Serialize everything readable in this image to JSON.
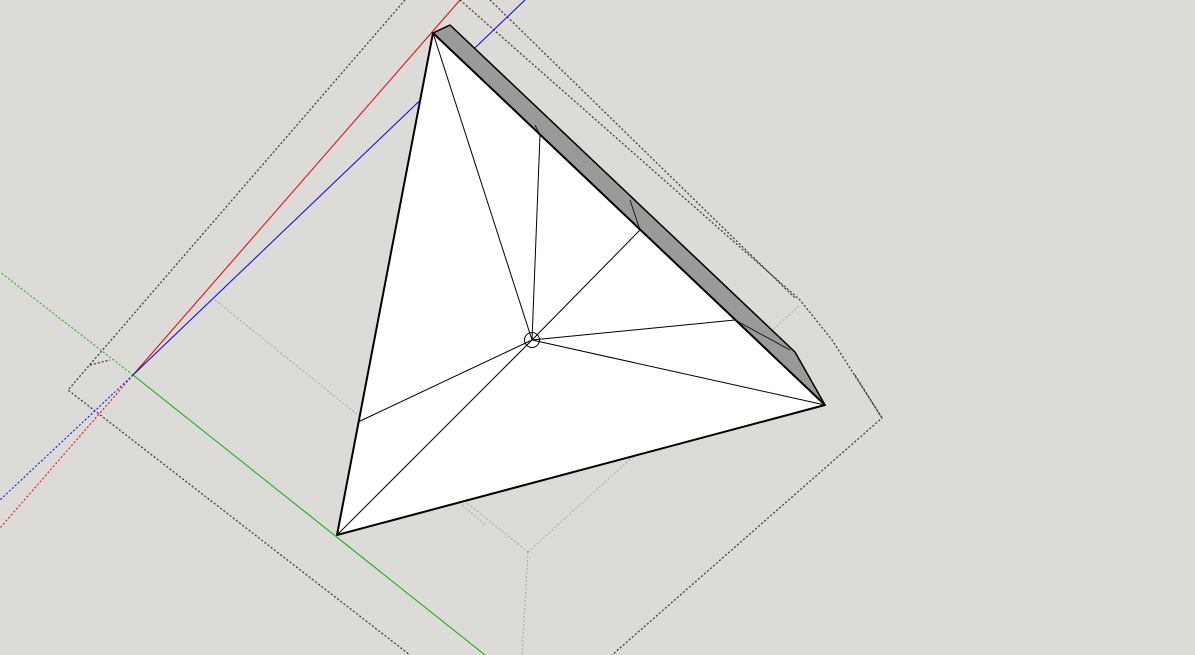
{
  "app": {
    "type": "3d-modeling-viewport",
    "background_color": "#dcdbd7"
  },
  "scene": {
    "model_face_color": "#ffffff",
    "model_side_color": "#9a9a9a",
    "edge_color": "#000000",
    "axis_colors": {
      "red": "#e60000",
      "green": "#00b400",
      "blue": "#0000e6"
    },
    "bounding_box_color": "#333333",
    "hidden_geometry_color": "#a8a8a8",
    "cursor_icon": "circle-inference-point-icon"
  }
}
